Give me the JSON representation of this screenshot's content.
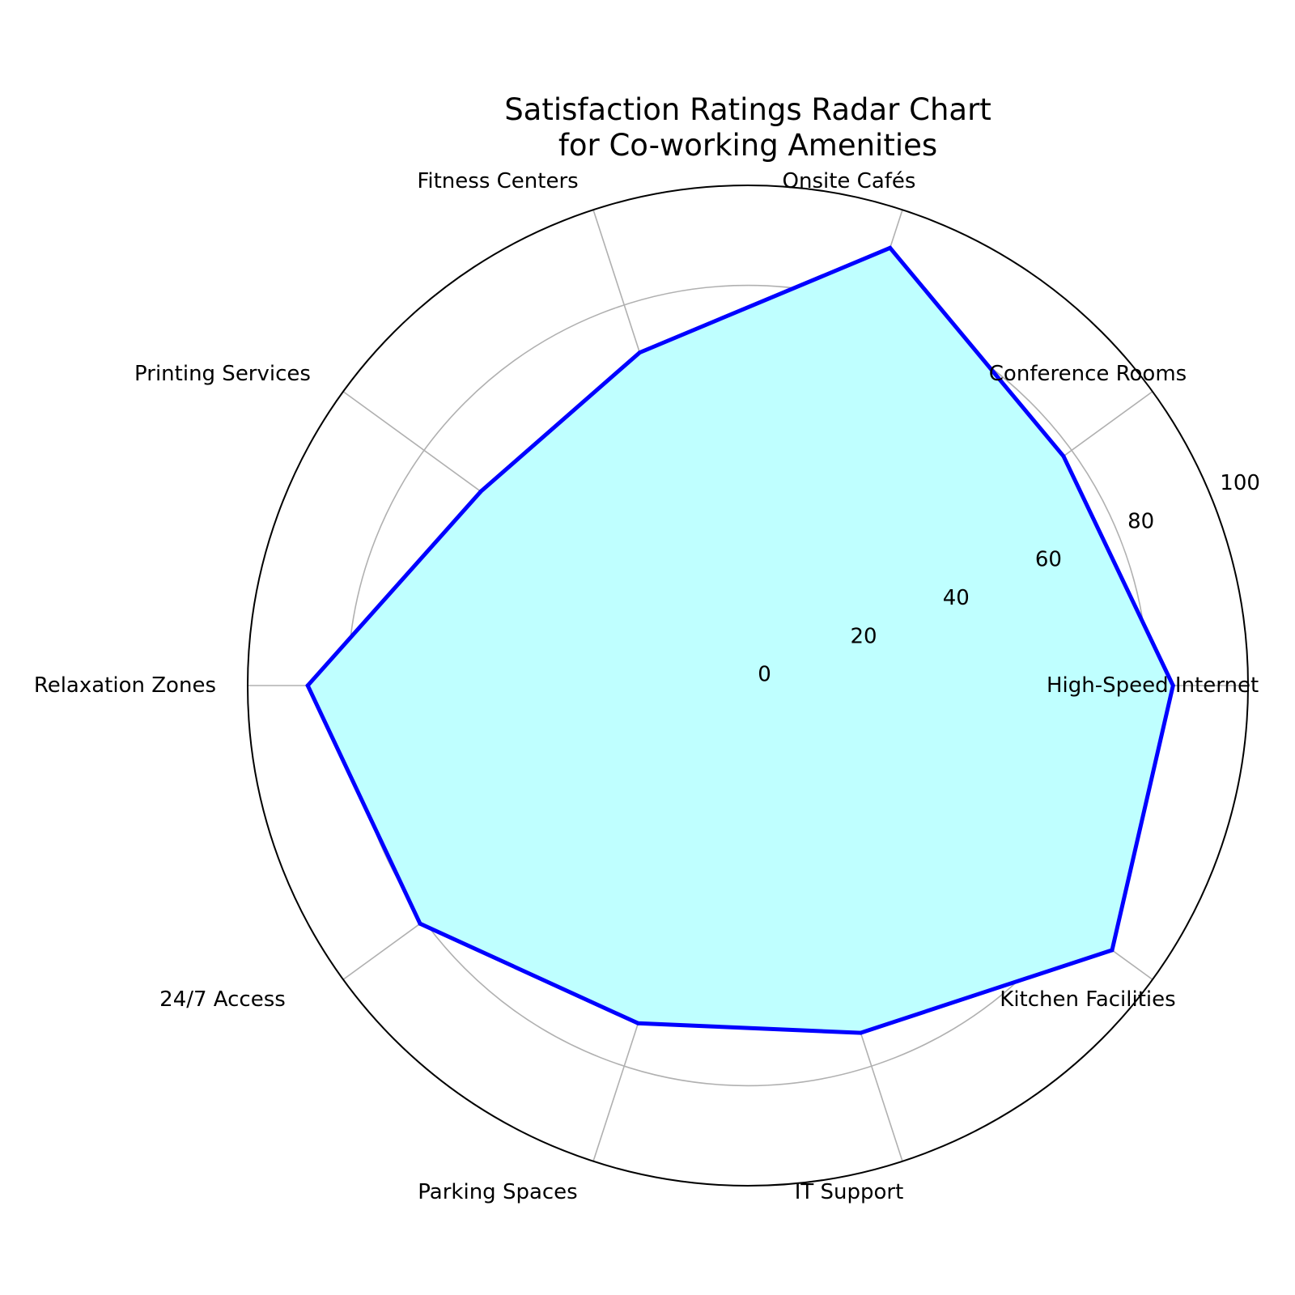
{
  "chart_data": {
    "type": "radar",
    "title_lines": [
      "Satisfaction Ratings Radar Chart",
      "for Co-working Amenities"
    ],
    "categories": [
      "High-Speed Internet",
      "Conference Rooms",
      "Onsite Cafés",
      "Fitness Centers",
      "Printing Services",
      "Relaxation Zones",
      "24/7 Access",
      "Parking Spaces",
      "IT Support",
      "Kitchen Facilities"
    ],
    "values": [
      85,
      78,
      92,
      70,
      66,
      88,
      81,
      71,
      73,
      90
    ],
    "rlim": [
      0,
      100
    ],
    "rticks": [
      0,
      20,
      40,
      60,
      80,
      100
    ],
    "grid": true,
    "colors": {
      "line": "#0000ff",
      "fill": "#bfffff",
      "grid": "#b0b0b0",
      "outer": "#000000"
    }
  }
}
